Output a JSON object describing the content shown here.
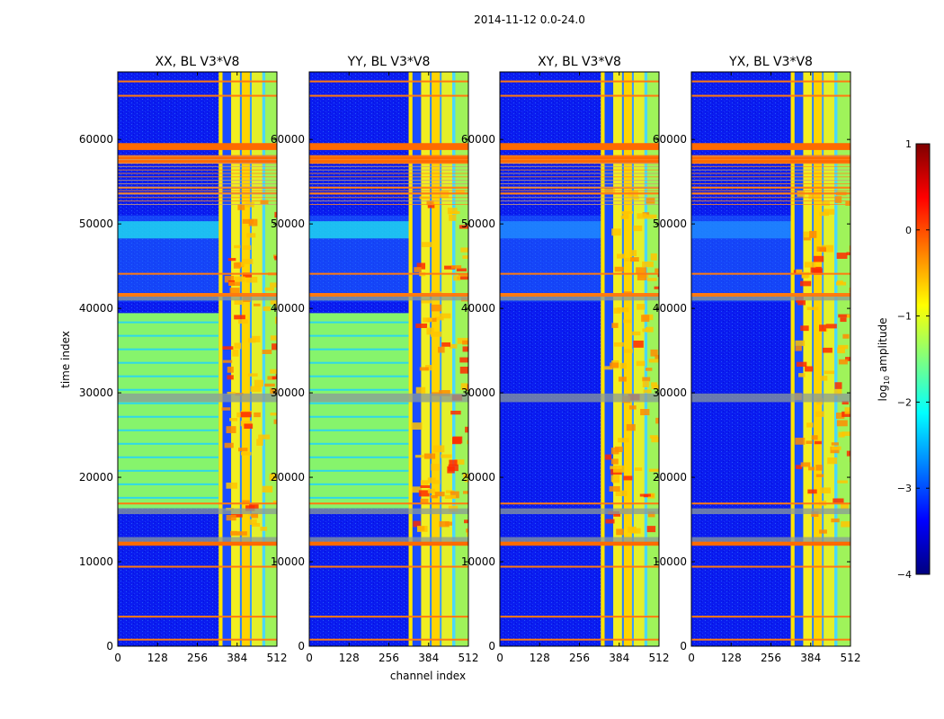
{
  "figure_title": "2014-11-12 0.0-24.0",
  "xlabel": "channel index",
  "ylabel": "time index",
  "colorbar": {
    "label_prefix": "log",
    "label_sub": "10",
    "label_suffix": " amplitude",
    "range": [
      -4,
      1
    ],
    "ticks": [
      "1",
      "0",
      "−1",
      "−2",
      "−3",
      "−4"
    ],
    "tick_values": [
      1,
      0,
      -1,
      -2,
      -3,
      -4
    ],
    "colors": [
      "#00007f",
      "#0000ff",
      "#007fff",
      "#00ffff",
      "#7fff7f",
      "#ffff00",
      "#ff7f00",
      "#ff0000",
      "#7f0000"
    ]
  },
  "chart_data": {
    "type": "heatmap",
    "title": "2014-11-12 0.0-24.0",
    "xlabel": "channel index",
    "ylabel": "time index",
    "xlim": [
      0,
      512
    ],
    "ylim": [
      0,
      68000
    ],
    "xticks": [
      0,
      128,
      256,
      384,
      512
    ],
    "yticks": [
      0,
      10000,
      20000,
      30000,
      40000,
      50000,
      60000
    ],
    "panels": [
      {
        "title": "XX, BL V3*V8",
        "pol": "XX",
        "active_start": 325,
        "ones": true,
        "green_low": 0.58
      },
      {
        "title": "YY, BL V3*V8",
        "pol": "YY",
        "active_start": 320,
        "ones": false,
        "green_low": 0.58
      },
      {
        "title": "XY, BL V3*V8",
        "pol": "XY",
        "active_start": 325,
        "ones": false,
        "green_low": null
      },
      {
        "title": "YX, BL V3*V8",
        "pol": "YX",
        "active_start": 320,
        "ones": false,
        "green_low": null
      }
    ]
  }
}
